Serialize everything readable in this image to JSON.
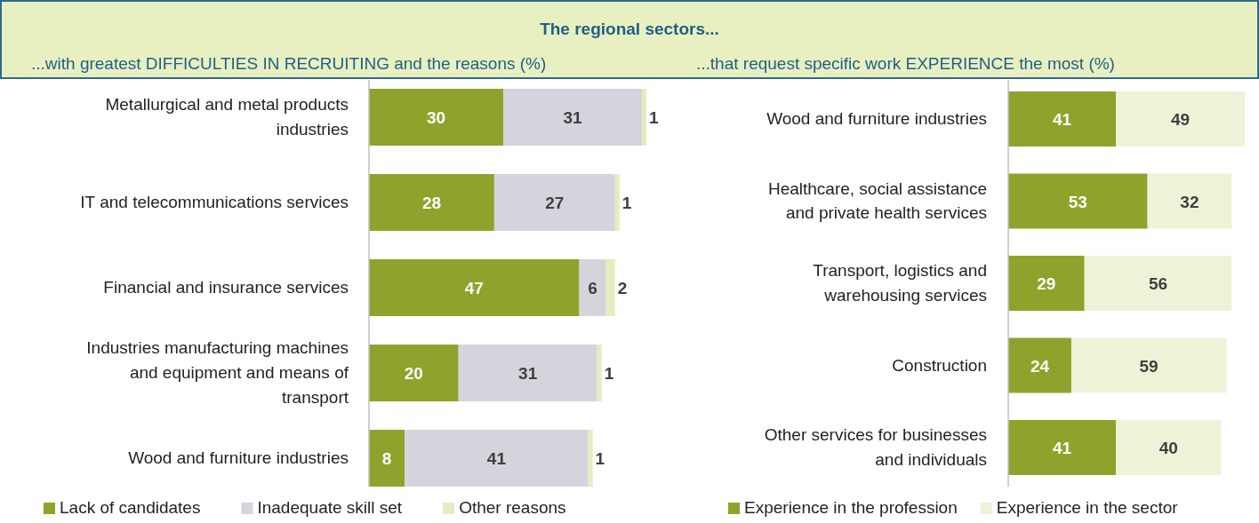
{
  "chart_data": [
    {
      "type": "bar",
      "orientation": "horizontal",
      "stacked": true,
      "data_labels": true,
      "legend": "bottom",
      "title": "The regional sectors...",
      "subtitle": "...with greatest DIFFICULTIES IN RECRUITING and the reasons (%)",
      "categories": [
        "Metallurgical and metal products industries",
        "IT and telecommunications services",
        "Financial and insurance services",
        "Industries manufacturing machines and equipment and means of transport",
        "Wood and furniture industries"
      ],
      "series": [
        {
          "name": "Lack of candidates",
          "color": "#8ea32c",
          "values": [
            30,
            28,
            47,
            20,
            8
          ]
        },
        {
          "name": "Inadequate skill set",
          "color": "#d4d4dc",
          "values": [
            31,
            27,
            6,
            31,
            41
          ]
        },
        {
          "name": "Other reasons",
          "color": "#e4edbd",
          "values": [
            1,
            1,
            2,
            1,
            1
          ]
        }
      ]
    },
    {
      "type": "bar",
      "orientation": "horizontal",
      "stacked": true,
      "data_labels": true,
      "legend": "bottom",
      "subtitle": "...that request specific work EXPERIENCE the most (%)",
      "categories": [
        "Wood and furniture industries",
        "Healthcare, social assistance and private health services",
        "Transport, logistics and warehousing services",
        "Construction",
        "Other services for businesses and individuals"
      ],
      "series": [
        {
          "name": "Experience in the profession",
          "color": "#8ea32c",
          "values": [
            41,
            53,
            29,
            24,
            41
          ]
        },
        {
          "name": "Experience in the sector",
          "color": "#eef3d8",
          "values": [
            49,
            32,
            56,
            59,
            40
          ]
        }
      ]
    }
  ]
}
